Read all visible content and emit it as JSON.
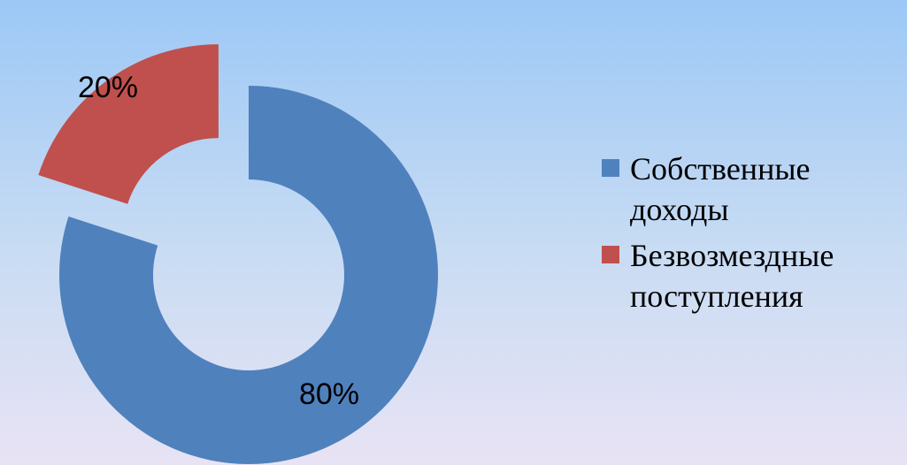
{
  "chart_data": {
    "type": "pie",
    "variant": "doughnut",
    "exploded": [
      "Безвозмездные поступления"
    ],
    "categories": [
      "Собственные доходы",
      "Безвозмездные поступления"
    ],
    "values": [
      80,
      20
    ],
    "data_labels": [
      "80%",
      "20%"
    ],
    "colors": [
      "#4f81bd",
      "#c0504d"
    ],
    "legend_position": "right",
    "title": ""
  },
  "legend": {
    "items": [
      {
        "label_line1": "Собственные",
        "label_line2": "доходы",
        "color": "#4f81bd"
      },
      {
        "label_line1": "Безвозмездные",
        "label_line2": "поступления",
        "color": "#c0504d"
      }
    ]
  }
}
